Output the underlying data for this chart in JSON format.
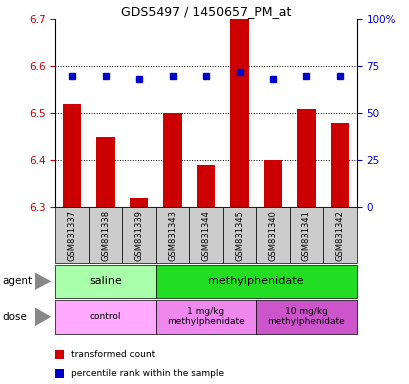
{
  "title": "GDS5497 / 1450657_PM_at",
  "samples": [
    "GSM831337",
    "GSM831338",
    "GSM831339",
    "GSM831343",
    "GSM831344",
    "GSM831345",
    "GSM831340",
    "GSM831341",
    "GSM831342"
  ],
  "red_values": [
    6.52,
    6.45,
    6.32,
    6.5,
    6.39,
    6.7,
    6.4,
    6.51,
    6.48
  ],
  "blue_values": [
    70,
    70,
    68,
    70,
    70,
    72,
    68,
    70,
    70
  ],
  "ylim_left": [
    6.3,
    6.7
  ],
  "ylim_right": [
    0,
    100
  ],
  "yticks_left": [
    6.3,
    6.4,
    6.5,
    6.6,
    6.7
  ],
  "yticks_right": [
    0,
    25,
    50,
    75,
    100
  ],
  "ytick_labels_right": [
    "0",
    "25",
    "50",
    "75",
    "100%"
  ],
  "agent_groups": [
    {
      "label": "saline",
      "color": "#AAFFAA",
      "start": 0,
      "end": 3
    },
    {
      "label": "methylphenidate",
      "color": "#22DD22",
      "start": 3,
      "end": 9
    }
  ],
  "dose_groups": [
    {
      "label": "control",
      "color": "#FFAAFF",
      "start": 0,
      "end": 3
    },
    {
      "label": "1 mg/kg\nmethylphenidate",
      "color": "#EE88EE",
      "start": 3,
      "end": 6
    },
    {
      "label": "10 mg/kg\nmethylphenidate",
      "color": "#CC55CC",
      "start": 6,
      "end": 9
    }
  ],
  "bar_color": "#CC0000",
  "dot_color": "#0000CC",
  "grid_color": "#000000",
  "background_color": "#FFFFFF",
  "tick_label_color_left": "#CC0000",
  "tick_label_color_right": "#0000CC",
  "label_box_color": "#CCCCCC",
  "legend_items": [
    {
      "color": "#CC0000",
      "label": "transformed count"
    },
    {
      "color": "#0000CC",
      "label": "percentile rank within the sample"
    }
  ]
}
